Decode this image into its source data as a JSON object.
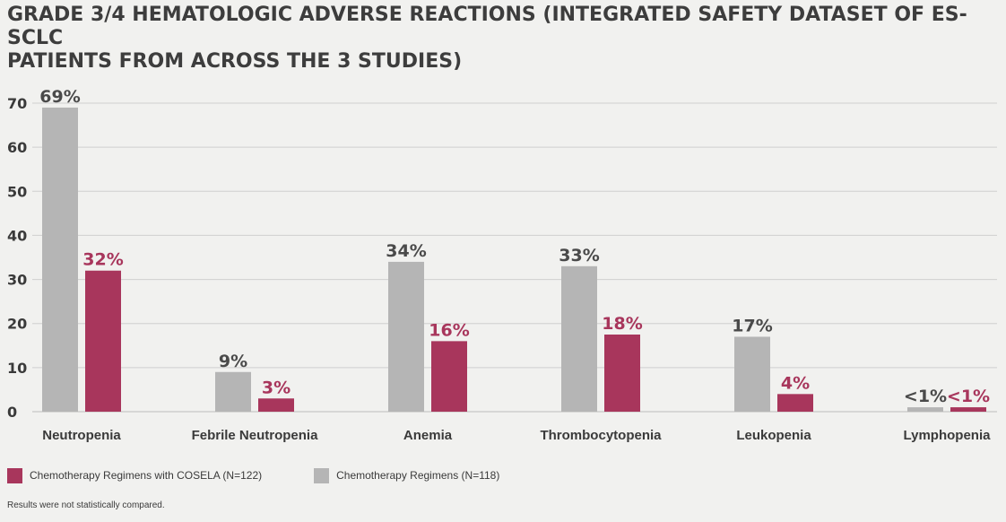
{
  "title": {
    "line1": "GRADE 3/4 HEMATOLOGIC ADVERSE REACTIONS (INTEGRATED SAFETY DATASET OF ES-SCLC",
    "line2": "PATIENTS FROM ACROSS THE 3 STUDIES)"
  },
  "colors": {
    "cosela": "#a8365c",
    "chemo": "#b5b5b5",
    "grid": "#cfcfcf",
    "axis_text": "#3a3a3a"
  },
  "chart_data": {
    "type": "bar",
    "title": "GRADE 3/4 HEMATOLOGIC ADVERSE REACTIONS (INTEGRATED SAFETY DATASET OF ES-SCLC PATIENTS FROM ACROSS THE 3 STUDIES)",
    "categories": [
      "Neutropenia",
      "Febrile Neutropenia",
      "Anemia",
      "Thrombocytopenia",
      "Leukopenia",
      "Lymphopenia"
    ],
    "series": [
      {
        "name": "Chemotherapy Regimens (N=118)",
        "values": [
          69,
          9,
          34,
          33,
          17,
          1
        ],
        "labels": [
          "69%",
          "9%",
          "34%",
          "33%",
          "17%",
          "<1%"
        ]
      },
      {
        "name": "Chemotherapy Regimens with COSELA (N=122)",
        "values": [
          32,
          3,
          16,
          17.5,
          4,
          1
        ],
        "labels": [
          "32%",
          "3%",
          "16%",
          "18%",
          "4%",
          "<1%"
        ]
      }
    ],
    "yticks": [
      0,
      10,
      20,
      30,
      40,
      50,
      60,
      70
    ],
    "ylim": [
      0,
      70
    ],
    "xlabel": "",
    "ylabel": "",
    "grid": true
  },
  "legend": {
    "cosela_label": "Chemotherapy Regimens with COSELA (N=122)",
    "chemo_label": "Chemotherapy Regimens (N=118)"
  },
  "footnote": "Results were not statistically compared."
}
